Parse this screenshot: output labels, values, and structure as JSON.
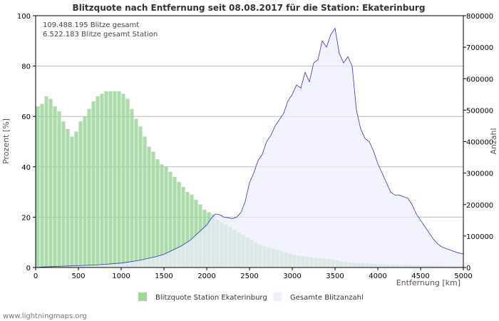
{
  "chart_data": {
    "type": "bar+area",
    "title": "Blitzquote nach Entfernung seit 08.08.2017 für die Station: Ekaterinburg",
    "xlabel": "Entfernung   [km]",
    "ylabel_left": "Prozent   [%]",
    "ylabel_right": "Anzahl",
    "xlim": [
      0,
      5000
    ],
    "ylim_left": [
      0,
      100
    ],
    "ylim_right": [
      0,
      800000
    ],
    "x_ticks": [
      "0",
      "500",
      "1000",
      "1500",
      "2000",
      "2500",
      "3000",
      "3500",
      "4000",
      "4500",
      "5000"
    ],
    "y_left_ticks": [
      "0",
      "20",
      "40",
      "60",
      "80",
      "100"
    ],
    "y_right_ticks": [
      "0",
      "100000",
      "200000",
      "300000",
      "400000",
      "500000",
      "600000",
      "700000",
      "800000"
    ],
    "stats": [
      "109.488.195 Blitze gesamt",
      "6.522.183 Blitze gesamt Station"
    ],
    "legend": [
      {
        "label": "Blitzquote Station Ekaterinburg",
        "color": "#9ed69e"
      },
      {
        "label": "Gesamte Blitzanzahl",
        "color": "#eeeeff"
      }
    ],
    "series": [
      {
        "name": "Blitzquote Station Ekaterinburg",
        "axis": "left",
        "kind": "bar",
        "color": "#9ed69e",
        "x": [
          25,
          75,
          125,
          175,
          225,
          275,
          325,
          375,
          425,
          475,
          525,
          575,
          625,
          675,
          725,
          775,
          825,
          875,
          925,
          975,
          1025,
          1075,
          1125,
          1175,
          1225,
          1275,
          1325,
          1375,
          1425,
          1475,
          1525,
          1575,
          1625,
          1675,
          1725,
          1775,
          1825,
          1875,
          1925,
          1975,
          2025,
          2075,
          2125,
          2175,
          2225,
          2275,
          2325,
          2375,
          2425,
          2475,
          2525,
          2575,
          2625,
          2675,
          2725,
          2775,
          2825,
          2875,
          2925,
          2975,
          3025,
          3075,
          3125,
          3175,
          3225,
          3275,
          3325,
          3375,
          3425,
          3475,
          3525,
          3575,
          3625,
          3675,
          3725,
          3775,
          3825,
          3875,
          3925,
          3975,
          4025,
          4075,
          4125,
          4175,
          4225,
          4275,
          4325,
          4375,
          4425,
          4475,
          4525,
          4575,
          4625,
          4675,
          4725,
          4775,
          4825,
          4875,
          4925,
          4975
        ],
        "values": [
          64,
          65,
          68,
          67,
          64,
          62,
          58,
          55,
          52,
          54,
          58,
          60,
          63,
          66,
          68,
          69,
          70,
          70,
          70,
          70,
          69,
          67,
          63,
          59,
          56,
          52,
          48,
          46,
          43,
          41,
          40,
          38,
          36,
          34,
          32,
          30,
          29,
          27,
          25,
          23,
          22,
          21,
          19,
          18,
          17,
          16,
          15,
          14,
          13,
          12,
          11,
          10,
          9,
          8.5,
          8,
          7.5,
          7,
          6.5,
          6,
          5.5,
          5,
          4.8,
          4.5,
          4.3,
          4,
          3.8,
          3.8,
          3.6,
          3.4,
          3.2,
          2.8,
          2.4,
          2.2,
          2,
          1.9,
          1.8,
          1.7,
          1.6,
          1.5,
          1.4,
          1.3,
          1.2,
          1.2,
          1.1,
          1.1,
          1,
          1,
          1,
          0.9,
          0.9,
          0.8,
          0.8,
          0.8,
          0.7,
          0.7,
          0.7,
          0.6,
          0.6,
          0.6,
          0.5
        ]
      },
      {
        "name": "Gesamte Blitzanzahl",
        "axis": "right",
        "kind": "area",
        "fill": "#eeeeff",
        "line": "#3333bb",
        "x": [
          0,
          100,
          200,
          300,
          400,
          500,
          600,
          700,
          800,
          900,
          1000,
          1100,
          1200,
          1300,
          1400,
          1500,
          1600,
          1700,
          1800,
          1900,
          2000,
          2050,
          2100,
          2150,
          2200,
          2250,
          2300,
          2350,
          2400,
          2450,
          2500,
          2550,
          2600,
          2650,
          2700,
          2750,
          2800,
          2850,
          2900,
          2950,
          3000,
          3050,
          3100,
          3150,
          3200,
          3250,
          3300,
          3350,
          3400,
          3450,
          3500,
          3550,
          3600,
          3650,
          3700,
          3750,
          3800,
          3850,
          3900,
          3950,
          4000,
          4050,
          4100,
          4150,
          4200,
          4250,
          4300,
          4350,
          4400,
          4450,
          4500,
          4550,
          4600,
          4650,
          4700,
          4750,
          4800,
          4850,
          4900,
          4950,
          5000
        ],
        "values": [
          0,
          2000,
          3000,
          4000,
          5000,
          6000,
          7000,
          8000,
          10000,
          12000,
          14000,
          18000,
          22000,
          28000,
          34000,
          42000,
          55000,
          68000,
          85000,
          110000,
          135000,
          155000,
          170000,
          168000,
          160000,
          158000,
          155000,
          160000,
          175000,
          210000,
          270000,
          300000,
          340000,
          360000,
          400000,
          420000,
          450000,
          470000,
          490000,
          530000,
          550000,
          580000,
          570000,
          620000,
          590000,
          650000,
          660000,
          720000,
          700000,
          740000,
          760000,
          680000,
          650000,
          670000,
          640000,
          500000,
          440000,
          410000,
          400000,
          370000,
          330000,
          300000,
          270000,
          240000,
          230000,
          230000,
          225000,
          220000,
          200000,
          170000,
          150000,
          130000,
          110000,
          90000,
          75000,
          65000,
          60000,
          55000,
          50000,
          46000,
          43000
        ]
      }
    ]
  },
  "footer": "www.lightningmaps.org"
}
